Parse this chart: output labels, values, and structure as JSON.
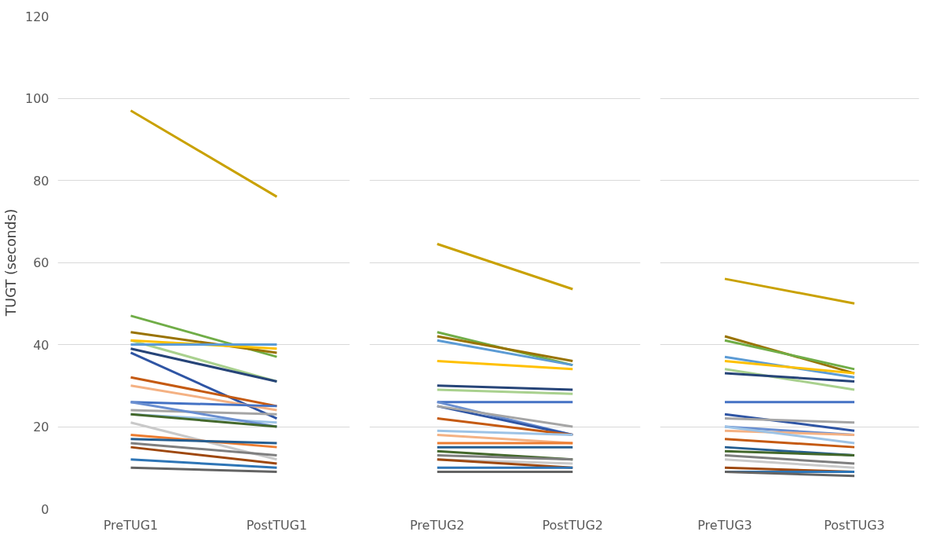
{
  "chart_data": [
    {
      "type": "line",
      "ylabel": "TUGT (seconds)",
      "categories": [
        "PreTUG1",
        "PostTUG1"
      ],
      "ylim": [
        0,
        120
      ],
      "yticks": [
        0,
        20,
        40,
        60,
        80,
        100,
        120
      ],
      "grid": "y",
      "marker": "none",
      "line_style": "solid",
      "series": [
        {
          "color": "#c9a100",
          "values": [
            97,
            76
          ]
        },
        {
          "color": "#70ad47",
          "values": [
            47,
            37
          ]
        },
        {
          "color": "#997300",
          "values": [
            43,
            38
          ]
        },
        {
          "color": "#a9d18e",
          "values": [
            41,
            31
          ]
        },
        {
          "color": "#ffc000",
          "values": [
            41,
            39
          ]
        },
        {
          "color": "#5b9bd5",
          "values": [
            40,
            40
          ]
        },
        {
          "color": "#264478",
          "values": [
            39,
            31
          ]
        },
        {
          "color": "#2f55a4",
          "values": [
            38,
            22
          ]
        },
        {
          "color": "#c55a11",
          "values": [
            32,
            25
          ]
        },
        {
          "color": "#f4b183",
          "values": [
            30,
            24
          ]
        },
        {
          "color": "#4472c4",
          "values": [
            26,
            25
          ]
        },
        {
          "color": "#a5a5a5",
          "values": [
            24,
            23
          ]
        },
        {
          "color": "#9dc3e6",
          "values": [
            23,
            21
          ]
        },
        {
          "color": "#698ed0",
          "values": [
            26,
            20
          ]
        },
        {
          "color": "#43682b",
          "values": [
            23,
            20
          ]
        },
        {
          "color": "#c9c9c9",
          "values": [
            21,
            12
          ]
        },
        {
          "color": "#ed7d31",
          "values": [
            18,
            15
          ]
        },
        {
          "color": "#255e91",
          "values": [
            17,
            16
          ]
        },
        {
          "color": "#7f7f7f",
          "values": [
            16,
            13
          ]
        },
        {
          "color": "#9e480e",
          "values": [
            15,
            11
          ]
        },
        {
          "color": "#2e75b6",
          "values": [
            12,
            10
          ]
        },
        {
          "color": "#636363",
          "values": [
            10,
            9
          ]
        }
      ]
    },
    {
      "type": "line",
      "categories": [
        "PreTUG2",
        "PostTUG2"
      ],
      "ylim": [
        0,
        120
      ],
      "yticks": [
        0,
        20,
        40,
        60,
        80,
        100,
        120
      ],
      "grid": "y",
      "marker": "none",
      "line_style": "solid",
      "tick_labels": "x",
      "series": [
        {
          "color": "#c9a100",
          "values": [
            64.5,
            53.5
          ]
        },
        {
          "color": "#70ad47",
          "values": [
            43,
            35
          ]
        },
        {
          "color": "#997300",
          "values": [
            42,
            36
          ]
        },
        {
          "color": "#5b9bd5",
          "values": [
            41,
            35
          ]
        },
        {
          "color": "#ffc000",
          "values": [
            36,
            34
          ]
        },
        {
          "color": "#264478",
          "values": [
            30,
            29
          ]
        },
        {
          "color": "#a9d18e",
          "values": [
            29,
            28
          ]
        },
        {
          "color": "#4472c4",
          "values": [
            26,
            26
          ]
        },
        {
          "color": "#698ed0",
          "values": [
            26,
            18
          ]
        },
        {
          "color": "#2f55a4",
          "values": [
            25,
            18
          ]
        },
        {
          "color": "#a5a5a5",
          "values": [
            25,
            20
          ]
        },
        {
          "color": "#c55a11",
          "values": [
            22,
            18
          ]
        },
        {
          "color": "#9dc3e6",
          "values": [
            19,
            18
          ]
        },
        {
          "color": "#f4b183",
          "values": [
            18,
            16
          ]
        },
        {
          "color": "#ed7d31",
          "values": [
            16,
            16
          ]
        },
        {
          "color": "#255e91",
          "values": [
            15,
            15
          ]
        },
        {
          "color": "#43682b",
          "values": [
            14,
            12
          ]
        },
        {
          "color": "#7f7f7f",
          "values": [
            13,
            12
          ]
        },
        {
          "color": "#c9c9c9",
          "values": [
            12,
            11
          ]
        },
        {
          "color": "#9e480e",
          "values": [
            12,
            10
          ]
        },
        {
          "color": "#2e75b6",
          "values": [
            10,
            10
          ]
        },
        {
          "color": "#636363",
          "values": [
            9,
            9
          ]
        }
      ]
    },
    {
      "type": "line",
      "categories": [
        "PreTUG3",
        "PostTUG3"
      ],
      "ylim": [
        0,
        120
      ],
      "yticks": [
        0,
        20,
        40,
        60,
        80,
        100,
        120
      ],
      "grid": "y",
      "marker": "none",
      "line_style": "solid",
      "tick_labels": "x",
      "series": [
        {
          "color": "#c9a100",
          "values": [
            56,
            50
          ]
        },
        {
          "color": "#997300",
          "values": [
            42,
            33
          ]
        },
        {
          "color": "#70ad47",
          "values": [
            41,
            34
          ]
        },
        {
          "color": "#5b9bd5",
          "values": [
            37,
            32
          ]
        },
        {
          "color": "#ffc000",
          "values": [
            36,
            33
          ]
        },
        {
          "color": "#a9d18e",
          "values": [
            34,
            29
          ]
        },
        {
          "color": "#264478",
          "values": [
            33,
            31
          ]
        },
        {
          "color": "#4472c4",
          "values": [
            26,
            26
          ]
        },
        {
          "color": "#2f55a4",
          "values": [
            23,
            19
          ]
        },
        {
          "color": "#a5a5a5",
          "values": [
            22,
            21
          ]
        },
        {
          "color": "#698ed0",
          "values": [
            20,
            18
          ]
        },
        {
          "color": "#f4b183",
          "values": [
            19,
            18
          ]
        },
        {
          "color": "#9dc3e6",
          "values": [
            20,
            16
          ]
        },
        {
          "color": "#c55a11",
          "values": [
            17,
            15
          ]
        },
        {
          "color": "#255e91",
          "values": [
            15,
            13
          ]
        },
        {
          "color": "#43682b",
          "values": [
            14,
            13
          ]
        },
        {
          "color": "#7f7f7f",
          "values": [
            13,
            11
          ]
        },
        {
          "color": "#c9c9c9",
          "values": [
            12,
            10
          ]
        },
        {
          "color": "#9e480e",
          "values": [
            10,
            9
          ]
        },
        {
          "color": "#2e75b6",
          "values": [
            9,
            9
          ]
        },
        {
          "color": "#636363",
          "values": [
            9,
            8
          ]
        }
      ]
    }
  ]
}
